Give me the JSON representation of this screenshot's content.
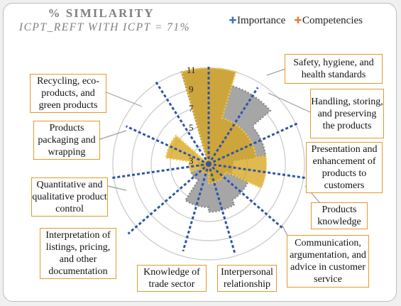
{
  "chart_data": {
    "type": "radar",
    "title": "% SIMILARITY",
    "subtitle": "ICPT_REFT WITH ICPT = 71%",
    "radial_ticks": [
      "3",
      "5",
      "7",
      "9",
      "11"
    ],
    "rlim": [
      1,
      11
    ],
    "legend_position": "top-right",
    "categories": [
      "Safety, hygiene, and health standards",
      "Handling, storing, and preserving the products",
      "Presentation and enhancement of products to customers",
      "Products knowledge",
      "Communication, argumentation, and advice in customer service",
      "Interpersonal relationship",
      "Knowledge of trade sector",
      "Interpretation of listings, pricing, and other documentation",
      "Quantitative and qualitative product control",
      "Products packaging and wrapping",
      "Recycling, eco-products, and green products"
    ],
    "series": [
      {
        "name": "Importance",
        "color": "#999999",
        "values": [
          11,
          9.5,
          7,
          3.5,
          5.5,
          6,
          5.5,
          3,
          2,
          1.5,
          1
        ]
      },
      {
        "name": "Competencies",
        "color": "#d9a520",
        "values": [
          11,
          6,
          6,
          7,
          3,
          3,
          2,
          2,
          3,
          5.5,
          1.5
        ]
      }
    ]
  },
  "colors": {
    "importance_legend": "#4472c4",
    "competencies_legend": "#ed7d31",
    "label_border": "#e39a2a",
    "spoke": "#2f55a4"
  }
}
